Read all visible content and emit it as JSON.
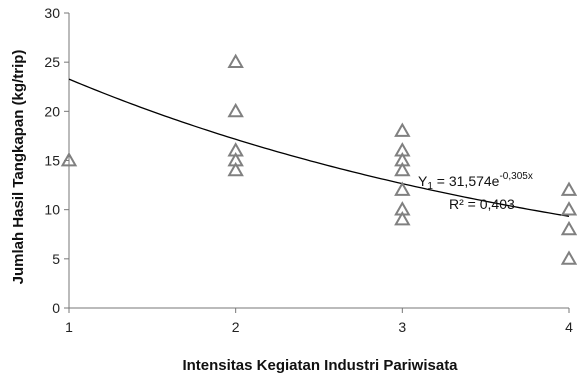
{
  "chart_data": {
    "type": "scatter",
    "xlabel": "Intensitas Kegiatan Industri Pariwisata",
    "ylabel": "Jumlah Hasil Tangkapan (kg/trip)",
    "xlim": [
      1,
      4
    ],
    "ylim": [
      0,
      30
    ],
    "x_ticks": [
      "1",
      "2",
      "3",
      "4"
    ],
    "y_ticks": [
      "0",
      "5",
      "10",
      "15",
      "20",
      "25",
      "30"
    ],
    "grid": false,
    "legend": "none",
    "marker": "triangle-open",
    "marker_color": "#808080",
    "points": [
      {
        "x": 1,
        "y": 15
      },
      {
        "x": 2,
        "y": 25
      },
      {
        "x": 2,
        "y": 20
      },
      {
        "x": 2,
        "y": 16
      },
      {
        "x": 2,
        "y": 15
      },
      {
        "x": 2,
        "y": 14
      },
      {
        "x": 3,
        "y": 18
      },
      {
        "x": 3,
        "y": 16
      },
      {
        "x": 3,
        "y": 15
      },
      {
        "x": 3,
        "y": 14
      },
      {
        "x": 3,
        "y": 12
      },
      {
        "x": 3,
        "y": 10
      },
      {
        "x": 3,
        "y": 9
      },
      {
        "x": 4,
        "y": 12
      },
      {
        "x": 4,
        "y": 10
      },
      {
        "x": 4,
        "y": 8
      },
      {
        "x": 4,
        "y": 5
      }
    ],
    "trendline": {
      "type": "exponential",
      "a": 31.574,
      "b": -0.305,
      "color": "#000000",
      "equation_prefix": "Y",
      "equation_subscript": "1",
      "equation_main": " = 31,574e",
      "equation_exponent": "-0,305x",
      "r2_label": "R² = 0,403"
    }
  }
}
